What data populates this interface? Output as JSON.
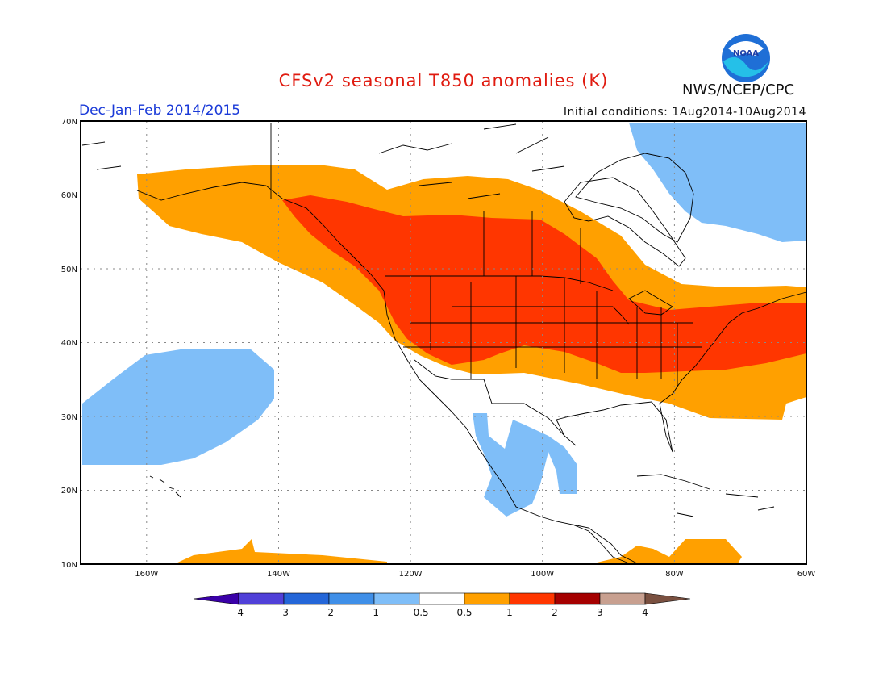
{
  "header": {
    "title": "CFSv2 seasonal T850 anomalies (K)",
    "season": "Dec-Jan-Feb 2014/2015",
    "initial_conditions": "Initial conditions: 1Aug2014-10Aug2014",
    "agency": "NWS/NCEP/CPC",
    "logo_text": "NOAA",
    "logo_icon": "noaa-logo-icon"
  },
  "axes": {
    "lat_labels": [
      "70N",
      "60N",
      "50N",
      "40N",
      "30N",
      "20N",
      "10N"
    ],
    "lon_labels": [
      "160W",
      "140W",
      "120W",
      "100W",
      "80W",
      "60W"
    ],
    "lat_range": [
      10,
      70
    ],
    "lon_range": [
      -170,
      -60
    ],
    "grid": "dotted"
  },
  "colorbar": {
    "labels": [
      "-4",
      "-3",
      "-2",
      "-1",
      "-0.5",
      "0.5",
      "1",
      "2",
      "3",
      "4"
    ],
    "colors": [
      "#3a00a8",
      "#5040d8",
      "#2466d8",
      "#3f8fe8",
      "#7fbef8",
      "#ffffff",
      "#ffa000",
      "#ff3600",
      "#a50000",
      "#c8a090",
      "#7a5040"
    ]
  },
  "anomaly_regions": [
    {
      "name": "warm-band-north-america",
      "level": "0.5 to 1",
      "color": "#ffa000"
    },
    {
      "name": "warm-core-continental-us",
      "level": "1 to 2",
      "color": "#ff3600"
    },
    {
      "name": "cool-eastern-canada",
      "level": "-1 to -0.5",
      "color": "#7fbef8"
    },
    {
      "name": "cool-north-pacific",
      "level": "-1 to -0.5",
      "color": "#7fbef8"
    },
    {
      "name": "cool-mexico",
      "level": "-1 to -0.5",
      "color": "#7fbef8"
    },
    {
      "name": "warm-tropical-pacific",
      "level": "0.5 to 1",
      "color": "#ffa000"
    },
    {
      "name": "warm-caribbean",
      "level": "0.5 to 1",
      "color": "#ffa000"
    }
  ]
}
